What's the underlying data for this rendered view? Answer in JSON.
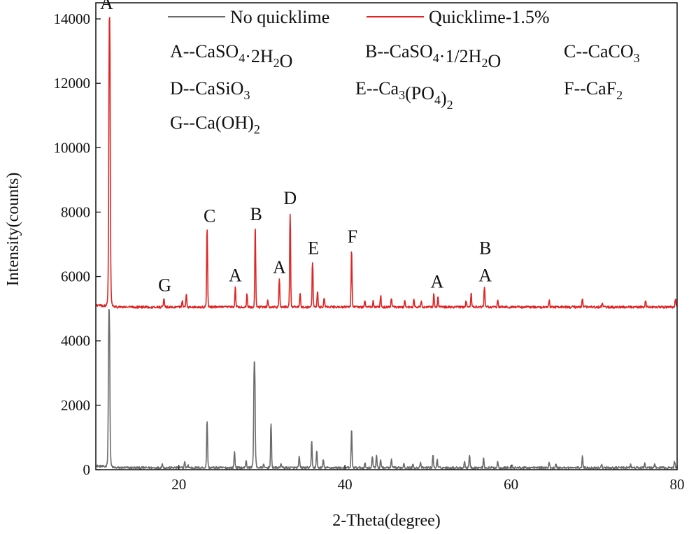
{
  "chart_data": {
    "type": "line",
    "xlabel": "2-Theta(degree)",
    "ylabel": "Intensity(counts)",
    "xlim": [
      10,
      80
    ],
    "ylim": [
      0,
      14500
    ],
    "x_ticks": [
      20,
      40,
      60,
      80
    ],
    "x_tick_labels": [
      "20",
      "40",
      "60",
      "80"
    ],
    "y_ticks": [
      0,
      2000,
      4000,
      6000,
      8000,
      10000,
      12000,
      14000
    ],
    "y_tick_labels": [
      "0",
      "2000",
      "4000",
      "6000",
      "8000",
      "10000",
      "12000",
      "14000"
    ],
    "legend": {
      "position": "top",
      "entries": [
        {
          "name": "No quicklime",
          "color": "#6b6b6b"
        },
        {
          "name": "Quicklime-1.5%",
          "color": "#e02424"
        }
      ]
    },
    "series": [
      {
        "name": "No quicklime",
        "color": "#6b6b6b",
        "baseline": 60,
        "peaks": [
          {
            "x": 11.6,
            "y": 4950
          },
          {
            "x": 18.0,
            "y": 180
          },
          {
            "x": 20.7,
            "y": 250
          },
          {
            "x": 21.1,
            "y": 150
          },
          {
            "x": 23.4,
            "y": 1500
          },
          {
            "x": 26.7,
            "y": 550
          },
          {
            "x": 28.1,
            "y": 300
          },
          {
            "x": 29.1,
            "y": 3350
          },
          {
            "x": 30.2,
            "y": 150
          },
          {
            "x": 31.1,
            "y": 1400
          },
          {
            "x": 32.3,
            "y": 200
          },
          {
            "x": 34.5,
            "y": 400
          },
          {
            "x": 36.0,
            "y": 850
          },
          {
            "x": 36.6,
            "y": 550
          },
          {
            "x": 37.4,
            "y": 300
          },
          {
            "x": 40.8,
            "y": 1200
          },
          {
            "x": 42.4,
            "y": 200
          },
          {
            "x": 43.3,
            "y": 400
          },
          {
            "x": 43.8,
            "y": 450
          },
          {
            "x": 44.3,
            "y": 300
          },
          {
            "x": 45.6,
            "y": 300
          },
          {
            "x": 47.1,
            "y": 200
          },
          {
            "x": 48.2,
            "y": 150
          },
          {
            "x": 49.1,
            "y": 200
          },
          {
            "x": 50.6,
            "y": 450
          },
          {
            "x": 51.1,
            "y": 300
          },
          {
            "x": 54.4,
            "y": 250
          },
          {
            "x": 55.0,
            "y": 450
          },
          {
            "x": 56.7,
            "y": 350
          },
          {
            "x": 58.4,
            "y": 250
          },
          {
            "x": 60.1,
            "y": 150
          },
          {
            "x": 64.6,
            "y": 200
          },
          {
            "x": 65.4,
            "y": 150
          },
          {
            "x": 68.6,
            "y": 400
          },
          {
            "x": 70.9,
            "y": 150
          },
          {
            "x": 74.4,
            "y": 150
          },
          {
            "x": 76.1,
            "y": 200
          },
          {
            "x": 77.3,
            "y": 150
          },
          {
            "x": 79.7,
            "y": 250
          }
        ]
      },
      {
        "name": "Quicklime-1.5%",
        "color": "#e02424",
        "baseline": 5050,
        "peaks": [
          {
            "x": 11.65,
            "y": 14000
          },
          {
            "x": 18.2,
            "y": 5300
          },
          {
            "x": 20.4,
            "y": 5250
          },
          {
            "x": 20.9,
            "y": 5450
          },
          {
            "x": 23.4,
            "y": 7450
          },
          {
            "x": 26.8,
            "y": 5650
          },
          {
            "x": 28.2,
            "y": 5450
          },
          {
            "x": 29.2,
            "y": 7450
          },
          {
            "x": 30.7,
            "y": 5250
          },
          {
            "x": 32.1,
            "y": 5900
          },
          {
            "x": 33.4,
            "y": 7950
          },
          {
            "x": 34.6,
            "y": 5450
          },
          {
            "x": 36.1,
            "y": 6450
          },
          {
            "x": 36.7,
            "y": 5550
          },
          {
            "x": 37.5,
            "y": 5350
          },
          {
            "x": 40.8,
            "y": 6750
          },
          {
            "x": 42.4,
            "y": 5250
          },
          {
            "x": 43.4,
            "y": 5250
          },
          {
            "x": 44.3,
            "y": 5400
          },
          {
            "x": 45.6,
            "y": 5300
          },
          {
            "x": 47.2,
            "y": 5250
          },
          {
            "x": 48.3,
            "y": 5300
          },
          {
            "x": 49.2,
            "y": 5250
          },
          {
            "x": 50.7,
            "y": 5450
          },
          {
            "x": 51.2,
            "y": 5350
          },
          {
            "x": 54.6,
            "y": 5250
          },
          {
            "x": 55.2,
            "y": 5450
          },
          {
            "x": 56.8,
            "y": 5650
          },
          {
            "x": 58.4,
            "y": 5250
          },
          {
            "x": 64.6,
            "y": 5250
          },
          {
            "x": 68.6,
            "y": 5300
          },
          {
            "x": 71.0,
            "y": 5200
          },
          {
            "x": 76.2,
            "y": 5250
          },
          {
            "x": 79.8,
            "y": 5300
          }
        ]
      }
    ],
    "peak_labels": [
      {
        "text": "A",
        "x": 11.3,
        "y": 14300
      },
      {
        "text": "G",
        "x": 18.3,
        "y": 5550
      },
      {
        "text": "A",
        "x": 26.8,
        "y": 5850
      },
      {
        "text": "C",
        "x": 23.7,
        "y": 7700
      },
      {
        "text": "B",
        "x": 29.3,
        "y": 7750
      },
      {
        "text": "A",
        "x": 32.1,
        "y": 6100
      },
      {
        "text": "D",
        "x": 33.4,
        "y": 8250
      },
      {
        "text": "E",
        "x": 36.2,
        "y": 6700
      },
      {
        "text": "F",
        "x": 40.9,
        "y": 7050
      },
      {
        "text": "A",
        "x": 51.1,
        "y": 5650
      },
      {
        "text": "B",
        "x": 56.9,
        "y": 6700
      },
      {
        "text": "A",
        "x": 56.9,
        "y": 5850
      }
    ],
    "phase_legend": [
      {
        "key": "A",
        "text": "A--CaSO4·2H2O",
        "parts": [
          [
            "A--CaSO",
            ""
          ],
          [
            "4",
            "sub"
          ],
          [
            "·2H",
            ""
          ],
          [
            "2",
            "sub"
          ],
          [
            "O",
            ""
          ]
        ]
      },
      {
        "key": "B",
        "text": "B--CaSO4·1/2H2O",
        "parts": [
          [
            "B--CaSO",
            ""
          ],
          [
            "4",
            "sub"
          ],
          [
            "·1/2H",
            ""
          ],
          [
            "2",
            "sub"
          ],
          [
            "O",
            ""
          ]
        ]
      },
      {
        "key": "C",
        "text": "C--CaCO3",
        "parts": [
          [
            "C--CaCO",
            ""
          ],
          [
            "3",
            "sub"
          ]
        ]
      },
      {
        "key": "D",
        "text": "D--CaSiO3",
        "parts": [
          [
            "D--CaSiO",
            ""
          ],
          [
            "3",
            "sub"
          ]
        ]
      },
      {
        "key": "E",
        "text": "E--Ca3(PO4)2",
        "parts": [
          [
            "E--Ca",
            ""
          ],
          [
            "3",
            "sub"
          ],
          [
            "(PO",
            ""
          ],
          [
            "4",
            "sub"
          ],
          [
            ")",
            ""
          ],
          [
            "2",
            "sub"
          ]
        ]
      },
      {
        "key": "F",
        "text": "F--CaF2",
        "parts": [
          [
            "F--CaF",
            ""
          ],
          [
            "2",
            "sub"
          ]
        ]
      },
      {
        "key": "G",
        "text": "G--Ca(OH)2",
        "parts": [
          [
            "G--Ca(OH)",
            ""
          ],
          [
            "2",
            "sub"
          ]
        ]
      }
    ]
  }
}
